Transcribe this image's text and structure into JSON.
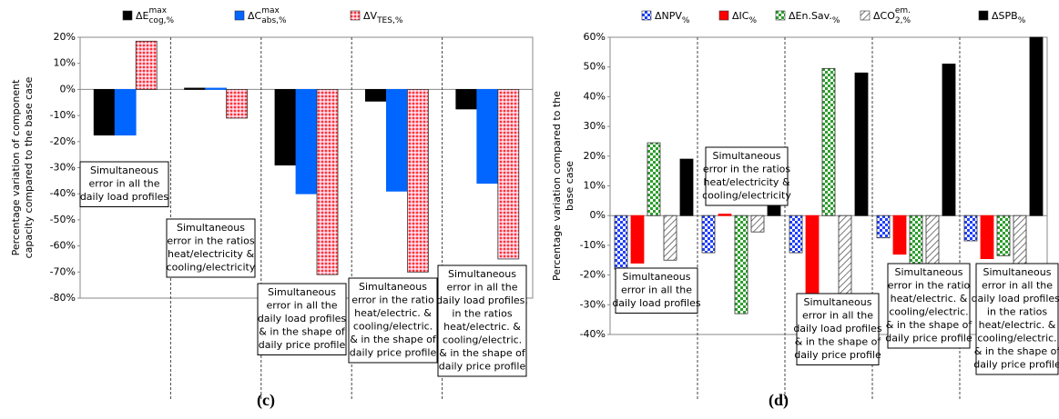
{
  "chart_data": [
    {
      "type": "bar",
      "panel_label": "(c)",
      "y_label": [
        "Percentage variation of component",
        "capacity compared to  the base case"
      ],
      "categories": [
        [
          "Simultaneous",
          "error in all the",
          "daily load profiles"
        ],
        [
          "Simultaneous",
          "error in the ratios",
          "heat/electricity &",
          "cooling/electricity"
        ],
        [
          "Simultaneous",
          "error in all the",
          "daily load profiles",
          "& in the shape of",
          "daily price profile"
        ],
        [
          "Simultaneous",
          "error in the ratio",
          "heat/electric. &",
          "cooling/electric.",
          "& in the shape of",
          "daily price profile"
        ],
        [
          "Simultaneous",
          "error in all the",
          "daily load profiles,",
          "in the ratios",
          "heat/electric. &",
          "cooling/electric.",
          "& in the shape of",
          "daily price profile"
        ]
      ],
      "series": [
        {
          "name": "ΔE",
          "name_sub": "cog,%",
          "name_sup": "max",
          "color": "#000000",
          "pattern": "solid",
          "values": [
            -17.5,
            0.5,
            -29,
            -4.5,
            -7.5
          ]
        },
        {
          "name": "ΔC",
          "name_sub": "abs,%",
          "name_sup": "max",
          "color": "#0066ff",
          "pattern": "solid",
          "values": [
            -17.5,
            0.5,
            -40,
            -39,
            -36
          ]
        },
        {
          "name": "ΔV",
          "name_sub": "TES,%",
          "color": "#ff3333",
          "pattern": "dots",
          "values": [
            18.5,
            -11,
            -71,
            -70,
            -65
          ]
        }
      ],
      "ylim": [
        -80,
        20
      ],
      "yticks": [
        {
          "value": -80,
          "label": "-80%"
        },
        {
          "value": -70,
          "label": "-70%"
        },
        {
          "value": -60,
          "label": "-60%"
        },
        {
          "value": -50,
          "label": "-50%"
        },
        {
          "value": -40,
          "label": "-40%"
        },
        {
          "value": -30,
          "label": "-30%"
        },
        {
          "value": -20,
          "label": "-20%"
        },
        {
          "value": -10,
          "label": "-10%"
        },
        {
          "value": 0,
          "label": "0%"
        },
        {
          "value": 10,
          "label": "10%"
        },
        {
          "value": 20,
          "label": "20%"
        }
      ],
      "grid": false
    },
    {
      "type": "bar",
      "panel_label": "(d)",
      "y_label": [
        "Percentage variation compared to the",
        "base  case"
      ],
      "categories": [
        [
          "Simultaneous",
          "error in all the",
          "daily load profiles"
        ],
        [
          "Simultaneous",
          "error in the ratios",
          "heat/electricity &",
          "cooling/electricity"
        ],
        [
          "Simultaneous",
          "error in all the",
          "daily load profiles",
          "& in the shape of",
          "daily price profile"
        ],
        [
          "Simultaneous",
          "error in the ratio",
          "heat/electric. &",
          "cooling/electric.",
          "& in the shape of",
          "daily price profile"
        ],
        [
          "Simultaneous",
          "error in all the",
          "daily load profiles,",
          "in the ratios",
          "heat/electric. &",
          "cooling/electric.",
          "& in the shape of",
          "daily price profile"
        ]
      ],
      "series": [
        {
          "name": "ΔNPV",
          "name_sub": "%",
          "color": "#1f3fff",
          "pattern": "checker",
          "values": [
            -18,
            -12.5,
            -12.5,
            -7.5,
            -8.5
          ]
        },
        {
          "name": "ΔIC",
          "name_sub": "%",
          "color": "#ff0000",
          "pattern": "solid",
          "values": [
            -16,
            0.5,
            -33,
            -13,
            -14.5
          ]
        },
        {
          "name": "ΔEn.Sav.",
          "name_sub": "%",
          "color": "#2e9e2e",
          "pattern": "checker",
          "values": [
            24.5,
            -33,
            49.5,
            -21,
            -13.5
          ]
        },
        {
          "name": "ΔCO",
          "name_sub": "2,%",
          "name_sup": "em.",
          "color": "#555555",
          "pattern": "hatch",
          "values": [
            -15,
            -5.5,
            -31,
            -16.5,
            -22
          ]
        },
        {
          "name": "ΔSPB",
          "name_sub": "%",
          "color": "#000000",
          "pattern": "solid",
          "values": [
            19,
            23,
            48,
            51,
            60
          ]
        }
      ],
      "ylim": [
        -40,
        60
      ],
      "yticks": [
        {
          "value": -40,
          "label": "-40%"
        },
        {
          "value": -30,
          "label": "-30%"
        },
        {
          "value": -20,
          "label": "-20%"
        },
        {
          "value": -10,
          "label": "-10%"
        },
        {
          "value": 0,
          "label": "0%"
        },
        {
          "value": 10,
          "label": "10%"
        },
        {
          "value": 20,
          "label": "20%"
        },
        {
          "value": 30,
          "label": "30%"
        },
        {
          "value": 40,
          "label": "40%"
        },
        {
          "value": 50,
          "label": "50%"
        },
        {
          "value": 60,
          "label": "60%"
        }
      ],
      "grid": false
    }
  ]
}
